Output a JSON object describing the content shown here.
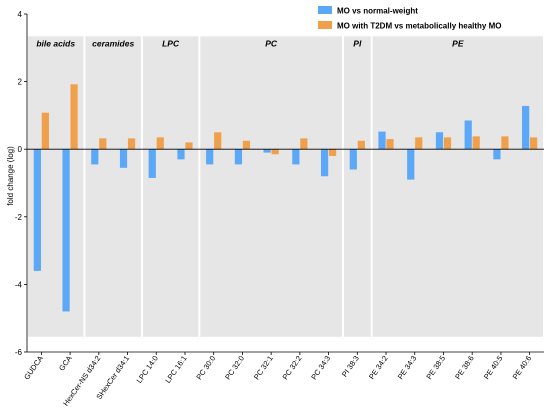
{
  "chart_data": {
    "type": "bar",
    "ylabel": "fold change (log)",
    "ylim": [
      -6,
      4
    ],
    "yticks": [
      -6,
      -4,
      -2,
      0,
      2,
      4
    ],
    "grid": false,
    "legend_position": "top-right",
    "categories": [
      "GUDCA",
      "GCA",
      "HexCer-NS d34:2",
      "SHexCer d34:1",
      "LPC 14:0",
      "LPC 16:1",
      "PC 30:0",
      "PC 32:0",
      "PC 32:1",
      "PC 32:2",
      "PC 34:3",
      "PI 38:3",
      "PE 34:2",
      "PE 34:3",
      "PE 38:5",
      "PE 38:6",
      "PE 40:5",
      "PE 40:6"
    ],
    "groups": [
      {
        "label": "bile acids",
        "start": 0,
        "end": 1
      },
      {
        "label": "ceramides",
        "start": 2,
        "end": 3
      },
      {
        "label": "LPC",
        "start": 4,
        "end": 5
      },
      {
        "label": "PC",
        "start": 6,
        "end": 10
      },
      {
        "label": "PI",
        "start": 11,
        "end": 11
      },
      {
        "label": "PE",
        "start": 12,
        "end": 17
      }
    ],
    "series": [
      {
        "name": "MO vs normal-weight",
        "color": "#5aa8f7",
        "values": [
          -3.6,
          -4.8,
          -0.45,
          -0.55,
          -0.85,
          -0.3,
          -0.45,
          -0.45,
          -0.1,
          -0.45,
          -0.8,
          -0.6,
          0.52,
          -0.9,
          0.5,
          0.85,
          -0.3,
          1.28
        ]
      },
      {
        "name": "MO with T2DM vs metabolically healthy MO",
        "color": "#f0a04b",
        "values": [
          1.08,
          1.92,
          0.32,
          0.32,
          0.35,
          0.2,
          0.5,
          0.25,
          -0.15,
          0.32,
          -0.2,
          0.25,
          0.3,
          0.35,
          0.35,
          0.38,
          0.38,
          0.35
        ]
      }
    ]
  }
}
